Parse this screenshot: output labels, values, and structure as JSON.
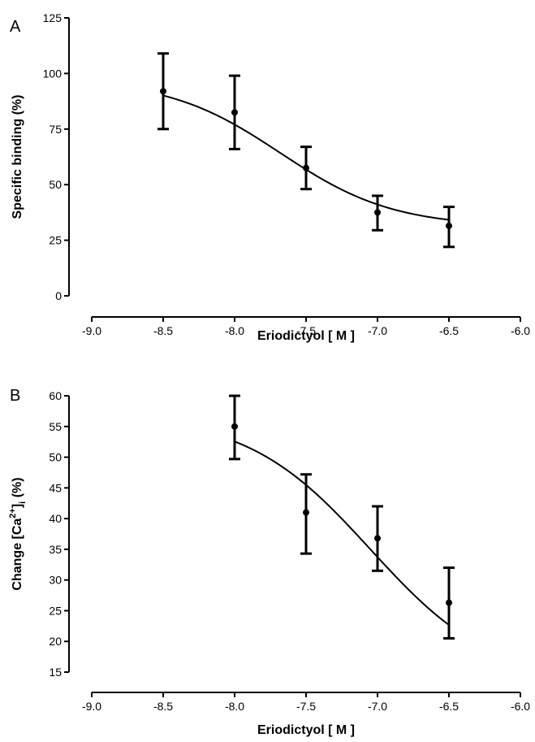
{
  "chart_data": [
    {
      "type": "scatter",
      "panel": "A",
      "xlabel": "Eriodictyol [ M ]",
      "ylabel": "Specific binding (%)",
      "xlim": [
        -9.0,
        -6.0
      ],
      "ylim": [
        0,
        125
      ],
      "xticks": [
        "-9.0",
        "-8.5",
        "-8.0",
        "-7.5",
        "-7.0",
        "-6.5",
        "-6.0"
      ],
      "yticks": [
        "0",
        "25",
        "50",
        "75",
        "100",
        "125"
      ],
      "grid": false,
      "points": [
        {
          "x": -8.5,
          "y": 92,
          "err_low": 75,
          "err_high": 109
        },
        {
          "x": -8.0,
          "y": 82.5,
          "err_low": 66,
          "err_high": 99
        },
        {
          "x": -7.5,
          "y": 57.5,
          "err_low": 48,
          "err_high": 67
        },
        {
          "x": -7.0,
          "y": 37.5,
          "err_low": 29.5,
          "err_high": 45
        },
        {
          "x": -6.5,
          "y": 31.5,
          "err_low": 22,
          "err_high": 40
        }
      ],
      "fit": {
        "type": "sigmoid",
        "top": 97.5,
        "bottom": 31,
        "logEC50": -7.68,
        "hill": -1.1,
        "x_range": [
          -8.5,
          -6.5
        ]
      }
    },
    {
      "type": "scatter",
      "panel": "B",
      "xlabel": "Eriodictyol [ M ]",
      "ylabel_parts": [
        "Change [Ca",
        "2+",
        "]",
        "i",
        " (%)"
      ],
      "xlim": [
        -9.0,
        -6.0
      ],
      "ylim": [
        15,
        60
      ],
      "xticks": [
        "-9.0",
        "-8.5",
        "-8.0",
        "-7.5",
        "-7.0",
        "-6.5",
        "-6.0"
      ],
      "yticks": [
        "15",
        "20",
        "25",
        "30",
        "35",
        "40",
        "45",
        "50",
        "55",
        "60"
      ],
      "grid": false,
      "points": [
        {
          "x": -8.0,
          "y": 55,
          "err_low": 49.7,
          "err_high": 60
        },
        {
          "x": -7.5,
          "y": 41,
          "err_low": 34.3,
          "err_high": 47.2
        },
        {
          "x": -7.0,
          "y": 36.8,
          "err_low": 31.5,
          "err_high": 42
        },
        {
          "x": -6.5,
          "y": 26.3,
          "err_low": 20.5,
          "err_high": 32
        }
      ],
      "fit": {
        "type": "sigmoid",
        "top": 57,
        "bottom": 13,
        "logEC50": -7.05,
        "hill": -1.0,
        "x_range": [
          -8.0,
          -6.5
        ]
      }
    }
  ]
}
